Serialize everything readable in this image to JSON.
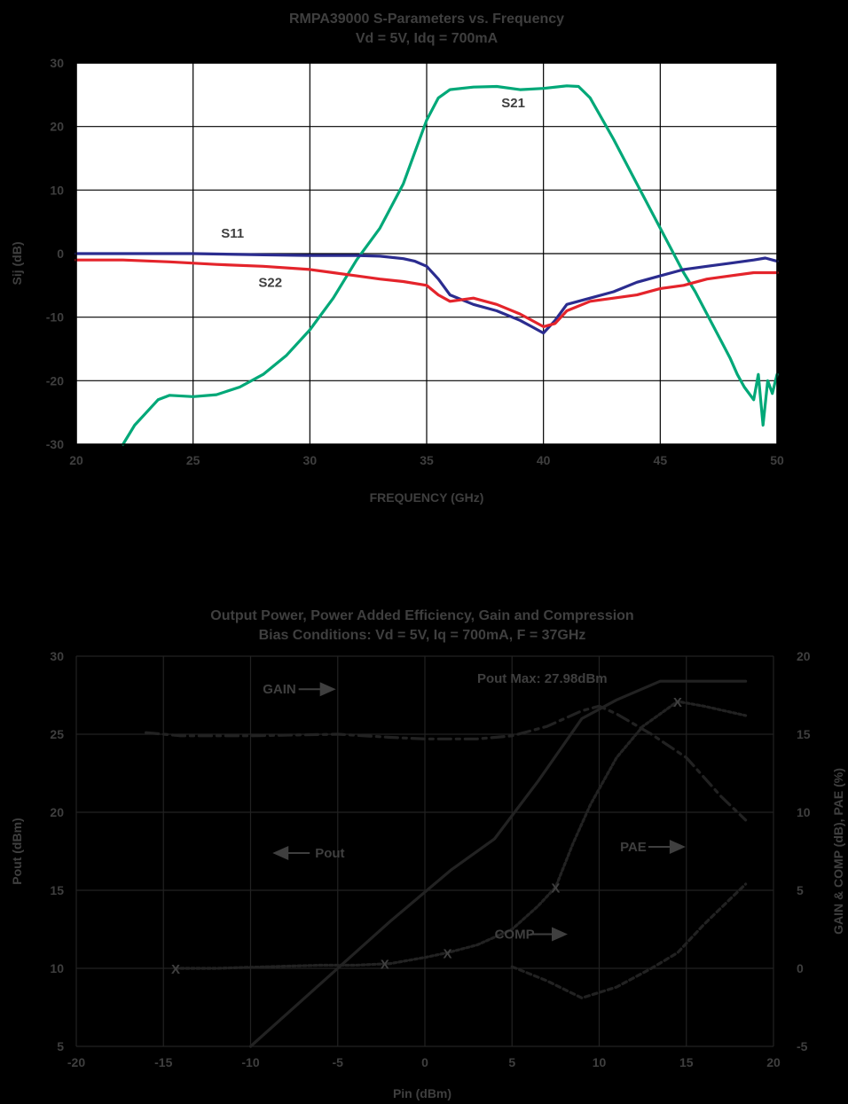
{
  "chart_data": [
    {
      "type": "line",
      "title": "RMPA39000 S-Parameters vs. Frequency",
      "subtitle": "Vd = 5V, Idq = 700mA",
      "xlabel": "FREQUENCY (GHz)",
      "ylabel": "Sij (dB)",
      "xlim": [
        20,
        50
      ],
      "ylim": [
        -30,
        30
      ],
      "xticks": [
        20,
        25,
        30,
        35,
        40,
        45,
        50
      ],
      "yticks": [
        -30,
        -20,
        -10,
        0,
        10,
        20,
        30
      ],
      "grid": true,
      "plot_bg": "#ffffff",
      "series": [
        {
          "name": "S21",
          "color": "#00a878",
          "x": [
            22,
            22.5,
            23,
            23.5,
            24,
            25,
            26,
            27,
            28,
            29,
            30,
            31,
            32,
            33,
            34,
            34.5,
            35,
            35.5,
            36,
            37,
            38,
            39,
            40,
            41,
            41.5,
            42,
            43,
            44,
            45,
            45.5,
            46,
            46.5,
            47,
            47.5,
            48,
            48.3,
            48.6,
            49,
            49.2,
            49.4,
            49.6,
            49.8,
            50
          ],
          "y": [
            -30,
            -27,
            -25,
            -23,
            -22.3,
            -22.5,
            -22.2,
            -21,
            -19,
            -16,
            -12,
            -7,
            -1,
            4,
            11,
            16,
            21,
            24.5,
            25.8,
            26.2,
            26.3,
            25.8,
            26,
            26.4,
            26.3,
            24.5,
            18,
            11,
            4,
            0.5,
            -3,
            -6,
            -9.5,
            -13,
            -16.5,
            -19,
            -21,
            -23,
            -19,
            -27,
            -20,
            -22,
            -19
          ]
        },
        {
          "name": "S11",
          "color": "#2b2c8f",
          "x": [
            20,
            22,
            25,
            28,
            30,
            32,
            33,
            34,
            34.5,
            35,
            35.5,
            36,
            37,
            38,
            39,
            39.5,
            40,
            40.5,
            41,
            42,
            43,
            44,
            45,
            46,
            47,
            48,
            49,
            49.5,
            50
          ],
          "y": [
            0,
            0,
            0,
            -0.2,
            -0.3,
            -0.3,
            -0.4,
            -0.8,
            -1.2,
            -2,
            -4,
            -6.5,
            -8,
            -9,
            -10.5,
            -11.5,
            -12.5,
            -10.5,
            -8,
            -7,
            -6,
            -4.5,
            -3.5,
            -2.5,
            -2,
            -1.5,
            -1,
            -0.7,
            -1.2
          ]
        },
        {
          "name": "S22",
          "color": "#e4242b",
          "x": [
            20,
            22,
            24,
            26,
            28,
            30,
            31,
            32,
            33,
            34,
            35,
            35.5,
            36,
            37,
            38,
            39,
            40,
            40.5,
            41,
            42,
            43,
            44,
            45,
            46,
            47,
            48,
            49,
            50
          ],
          "y": [
            -1,
            -1,
            -1.3,
            -1.7,
            -2,
            -2.5,
            -3,
            -3.5,
            -4,
            -4.4,
            -5,
            -6.5,
            -7.5,
            -7,
            -8,
            -9.5,
            -11.5,
            -11,
            -9,
            -7.5,
            -7,
            -6.5,
            -5.5,
            -5,
            -4,
            -3.5,
            -3,
            -3
          ]
        }
      ],
      "annotations": [
        {
          "text": "S21",
          "x": 38.2,
          "y": 23
        },
        {
          "text": "S11",
          "x": 26.2,
          "y": 2.5
        },
        {
          "text": "S22",
          "x": 27.8,
          "y": -5.2
        }
      ]
    },
    {
      "type": "line",
      "title": "Output Power, Power Added Efficiency, Gain and Compression",
      "subtitle": "Bias Conditions: Vd = 5V, Iq = 700mA, F = 37GHz",
      "xlabel": "Pin (dBm)",
      "ylabel": "Pout (dBm)",
      "y2label": "GAIN & COMP (dB), PAE (%)",
      "xlim": [
        -20,
        20
      ],
      "ylim": [
        5,
        30
      ],
      "y2lim": [
        -5,
        20
      ],
      "xticks": [
        -20,
        -15,
        -10,
        -5,
        0,
        5,
        10,
        15,
        20
      ],
      "yticks": [
        5,
        10,
        15,
        20,
        25,
        30
      ],
      "y2ticks": [
        -5,
        0,
        5,
        10,
        15,
        20
      ],
      "grid": true,
      "plot_bg": "#000000",
      "series": [
        {
          "name": "Pout",
          "axis": "left",
          "color": "#222222",
          "dash": "",
          "x": [
            -10,
            -6,
            -2,
            1.5,
            4,
            6.5,
            9,
            11,
            13.5,
            16,
            18.4
          ],
          "y": [
            5,
            9,
            13,
            16.3,
            18.3,
            22,
            26,
            27.2,
            28.4,
            28.4,
            28.4
          ]
        },
        {
          "name": "GAIN",
          "axis": "right",
          "color": "#222222",
          "dash": "14,6,4,6",
          "x": [
            -16,
            -14,
            -10,
            -5,
            -2,
            0,
            3,
            5,
            7,
            9,
            10,
            11,
            13,
            15,
            17,
            18.4
          ],
          "y": [
            15.1,
            14.9,
            14.9,
            15,
            14.8,
            14.7,
            14.7,
            14.9,
            15.5,
            16.5,
            16.8,
            16.3,
            15,
            13.5,
            11,
            9.5
          ]
        },
        {
          "name": "PAE",
          "axis": "right",
          "color": "#222222",
          "dash": "3,3",
          "x": [
            -14.3,
            -12,
            -9,
            -6,
            -4,
            -2,
            0,
            1.3,
            3,
            5,
            6.5,
            7.5,
            8.5,
            9.5,
            11,
            12.5,
            14.5,
            16,
            18.4
          ],
          "y": [
            0,
            0,
            0.1,
            0.2,
            0.2,
            0.3,
            0.7,
            1,
            1.5,
            2.5,
            4,
            5.2,
            8,
            10.5,
            13.5,
            15.5,
            17.1,
            16.8,
            16.2
          ]
        },
        {
          "name": "COMP",
          "axis": "right",
          "color": "#222222",
          "dash": "5,4",
          "x": [
            5,
            7,
            9,
            11,
            13,
            14.5,
            16,
            18.4
          ],
          "y": [
            0.1,
            -0.8,
            -1.9,
            -1.2,
            0,
            1,
            2.8,
            5.4
          ]
        }
      ],
      "markers": [
        {
          "text": "X",
          "axis": "right",
          "x": -14.3,
          "y": 0
        },
        {
          "text": "X",
          "axis": "right",
          "x": -2.3,
          "y": 0.3
        },
        {
          "text": "X",
          "axis": "right",
          "x": 1.3,
          "y": 1
        },
        {
          "text": "X",
          "axis": "right",
          "x": 7.5,
          "y": 5.2
        },
        {
          "text": "X",
          "axis": "right",
          "x": 14.5,
          "y": 17.1
        }
      ],
      "annotations": [
        {
          "text": "Pout Max: 27.98dBm",
          "x": 3,
          "y": 28.3,
          "arrow": ""
        },
        {
          "text": "GAIN",
          "x": -9.3,
          "y": 27.6,
          "arrow": "right"
        },
        {
          "text": "Pout",
          "x": -6.3,
          "y": 17.1,
          "arrow": "left"
        },
        {
          "text": "PAE",
          "x": 11.2,
          "y": 17.5,
          "arrow": "right"
        },
        {
          "text": "COMP",
          "x": 4,
          "y": 11.9,
          "arrow": "right"
        }
      ]
    }
  ]
}
